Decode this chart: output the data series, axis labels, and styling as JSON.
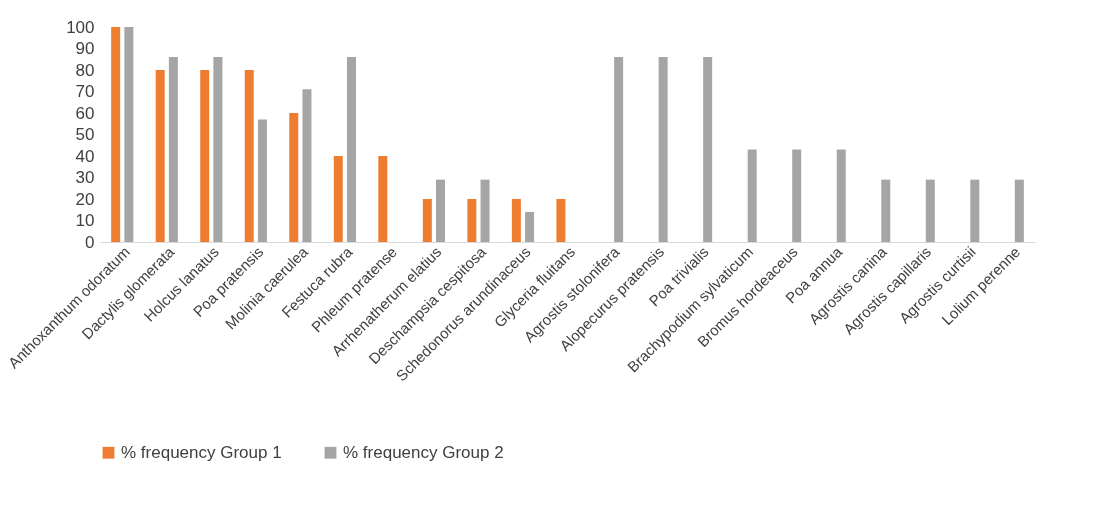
{
  "chart_data": {
    "type": "bar",
    "categories": [
      "Anthoxanthum odoratum",
      "Dactylis glomerata",
      "Holcus lanatus",
      "Poa pratensis",
      "Molinia caerulea",
      "Festuca rubra",
      "Phleum pratense",
      "Arrhenatherum elatius",
      "Deschampsia cespitosa",
      "Schedonorus arundinaceus",
      "Glyceria fluitans",
      "Agrostis stolonifera",
      "Alopecurus pratensis",
      "Poa trivialis",
      "Brachypodium sylvaticum",
      "Bromus hordeaceus",
      "Poa annua",
      "Agrostis canina",
      "Agrostis capillaris",
      "Agrostis curtisii",
      "Lolium perenne"
    ],
    "series": [
      {
        "name": "% frequency Group 1",
        "color": "#ed7d31",
        "values": [
          100,
          80,
          80,
          80,
          60,
          40,
          40,
          20,
          20,
          20,
          20,
          null,
          null,
          null,
          null,
          null,
          null,
          null,
          null,
          null,
          null
        ]
      },
      {
        "name": "% frequency Group 2",
        "color": "#a5a5a5",
        "values": [
          100,
          86,
          86,
          57,
          71,
          86,
          null,
          29,
          29,
          14,
          null,
          86,
          86,
          86,
          43,
          43,
          43,
          29,
          29,
          29,
          29
        ]
      }
    ],
    "ylim": [
      0,
      100
    ],
    "yticks": [
      0,
      10,
      20,
      30,
      40,
      50,
      60,
      70,
      80,
      90,
      100
    ],
    "legend": "bottom"
  }
}
